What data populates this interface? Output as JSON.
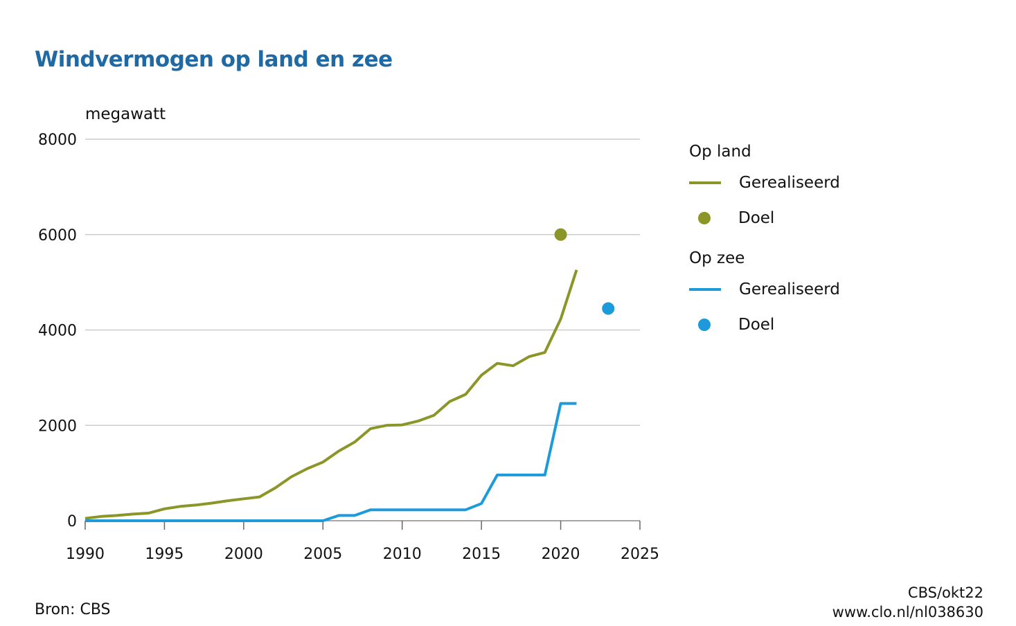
{
  "title": "Windvermogen op land en zee",
  "colors": {
    "accent": "#1f6aa5",
    "land": "#8c9527",
    "zee": "#1d9ad9",
    "grid": "#cccccc"
  },
  "legend": {
    "groups": [
      {
        "title": "Op land",
        "line_label": "Gerealiseerd",
        "dot_label": "Doel",
        "color_key": "land"
      },
      {
        "title": "Op zee",
        "line_label": "Gerealiseerd",
        "dot_label": "Doel",
        "color_key": "zee"
      }
    ]
  },
  "footer": {
    "source": "Bron: CBS",
    "credit": "CBS/okt22",
    "url": "www.clo.nl/nl038630"
  },
  "chart_data": {
    "type": "line",
    "title": "Windvermogen op land en zee",
    "ylabel": "megawatt",
    "xlabel": "",
    "xlim": [
      1990,
      2025
    ],
    "ylim": [
      0,
      8000
    ],
    "xticks": [
      1990,
      1995,
      2000,
      2005,
      2010,
      2015,
      2020,
      2025
    ],
    "xtick_labels": [
      "1990",
      "1995",
      "2000",
      "2005",
      "2010",
      "2015",
      "2020",
      "2025"
    ],
    "yticks": [
      0,
      2000,
      4000,
      6000,
      8000
    ],
    "ytick_labels": [
      "0",
      "2000",
      "4000",
      "6000",
      "8000"
    ],
    "grid": true,
    "legend_position": "right",
    "series": [
      {
        "name": "Op land – Gerealiseerd",
        "color_key": "land",
        "x": [
          1990,
          1991,
          1992,
          1993,
          1994,
          1995,
          1996,
          1997,
          1998,
          1999,
          2000,
          2001,
          2002,
          2003,
          2004,
          2005,
          2006,
          2007,
          2008,
          2009,
          2010,
          2011,
          2012,
          2013,
          2014,
          2015,
          2016,
          2017,
          2018,
          2019,
          2020,
          2021
        ],
        "values": [
          50,
          90,
          110,
          140,
          160,
          250,
          300,
          330,
          370,
          420,
          460,
          500,
          690,
          920,
          1090,
          1230,
          1460,
          1650,
          1930,
          2000,
          2010,
          2090,
          2210,
          2500,
          2650,
          3050,
          3300,
          3250,
          3440,
          3530,
          4230,
          5260
        ]
      },
      {
        "name": "Op zee – Gerealiseerd",
        "color_key": "zee",
        "x": [
          1990,
          2005,
          2006,
          2007,
          2008,
          2009,
          2010,
          2011,
          2012,
          2013,
          2014,
          2015,
          2016,
          2017,
          2018,
          2019,
          2020,
          2021
        ],
        "values": [
          0,
          0,
          110,
          110,
          230,
          230,
          230,
          230,
          230,
          230,
          230,
          360,
          960,
          960,
          960,
          960,
          2460,
          2460
        ]
      }
    ],
    "targets": [
      {
        "name": "Op land – Doel",
        "color_key": "land",
        "x": 2020,
        "value": 6000
      },
      {
        "name": "Op zee – Doel",
        "color_key": "zee",
        "x": 2023,
        "value": 4450
      }
    ]
  }
}
